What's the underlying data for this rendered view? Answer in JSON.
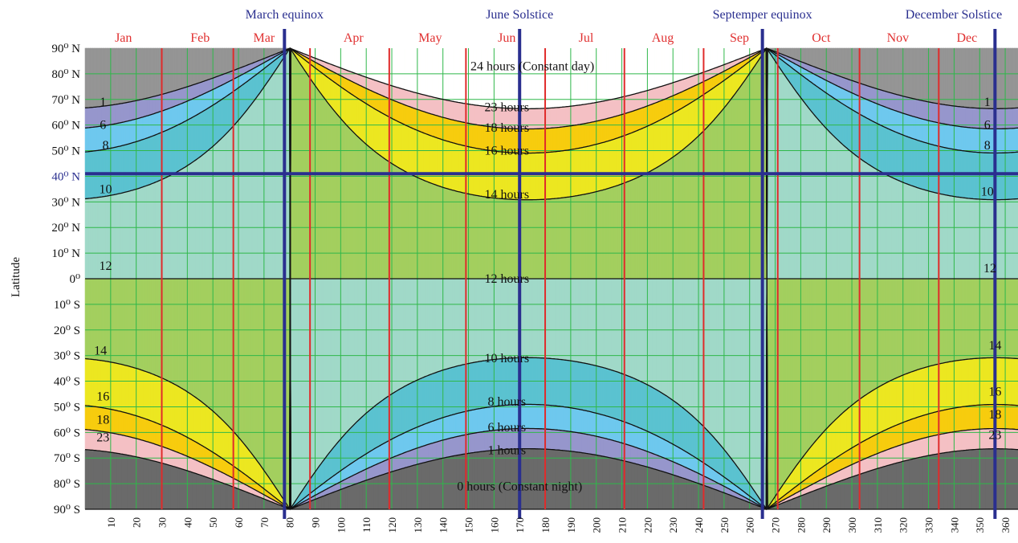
{
  "chart_data": {
    "type": "area",
    "title": "",
    "xlabel": "",
    "ylabel": "Latitude",
    "xlim": [
      0,
      365
    ],
    "ylim": [
      -90,
      90
    ],
    "x_ticks": [
      10,
      20,
      30,
      40,
      50,
      60,
      70,
      80,
      90,
      100,
      110,
      120,
      130,
      140,
      150,
      160,
      170,
      180,
      190,
      200,
      210,
      220,
      230,
      240,
      250,
      260,
      270,
      280,
      290,
      300,
      310,
      320,
      330,
      340,
      350,
      360
    ],
    "y_tick_labels": [
      {
        "lat": 90,
        "text": "90⁰ N"
      },
      {
        "lat": 80,
        "text": "80⁰ N"
      },
      {
        "lat": 70,
        "text": "70⁰ N"
      },
      {
        "lat": 60,
        "text": "60⁰ N"
      },
      {
        "lat": 50,
        "text": "50⁰ N"
      },
      {
        "lat": 40,
        "text": "40⁰ N",
        "highlight": true
      },
      {
        "lat": 30,
        "text": "30⁰ N"
      },
      {
        "lat": 20,
        "text": "20⁰ N"
      },
      {
        "lat": 10,
        "text": "10⁰ N"
      },
      {
        "lat": 0,
        "text": "0⁰"
      },
      {
        "lat": -10,
        "text": "10⁰ S"
      },
      {
        "lat": -20,
        "text": "20⁰ S"
      },
      {
        "lat": -30,
        "text": "30⁰ S"
      },
      {
        "lat": -40,
        "text": "40⁰ S"
      },
      {
        "lat": -50,
        "text": "50⁰ S"
      },
      {
        "lat": -60,
        "text": "60⁰ S"
      },
      {
        "lat": -70,
        "text": "70⁰ S"
      },
      {
        "lat": -80,
        "text": "80⁰ S"
      },
      {
        "lat": -90,
        "text": "90⁰ S"
      }
    ],
    "months": [
      {
        "label": "Jan",
        "mid": 15
      },
      {
        "label": "Feb",
        "mid": 45
      },
      {
        "label": "Mar",
        "mid": 70
      },
      {
        "label": "Apr",
        "mid": 105
      },
      {
        "label": "May",
        "mid": 135
      },
      {
        "label": "Jun",
        "mid": 165
      },
      {
        "label": "Jul",
        "mid": 196
      },
      {
        "label": "Aug",
        "mid": 226
      },
      {
        "label": "Sep",
        "mid": 256
      },
      {
        "label": "Oct",
        "mid": 288
      },
      {
        "label": "Nov",
        "mid": 318
      },
      {
        "label": "Dec",
        "mid": 345
      }
    ],
    "month_boundaries": [
      30,
      58,
      88,
      119,
      149,
      180,
      211,
      242,
      271,
      303,
      334
    ],
    "events": [
      {
        "label": "March equinox",
        "day": 78
      },
      {
        "label": "June Solstice",
        "day": 170
      },
      {
        "label": "Septemper equinox",
        "day": 265
      },
      {
        "label": "December Solstice",
        "day": 356
      }
    ],
    "highlight_latitude": 41,
    "bands": [
      {
        "hours": "24 hours (Constant day)",
        "color": "#ffffff"
      },
      {
        "hours": "23 hours",
        "color": "#f4c0c4"
      },
      {
        "hours": "18 hours",
        "color": "#f7cc0e"
      },
      {
        "hours": "16 hours",
        "color": "#ece721"
      },
      {
        "hours": "14 hours",
        "color": "#a3cf5f"
      },
      {
        "hours": "12 hours",
        "color": "#a0d9c8"
      },
      {
        "hours": "10 hours",
        "color": "#5bc2d0"
      },
      {
        "hours": "8 hours",
        "color": "#6ec8ee"
      },
      {
        "hours": "6 hours",
        "color": "#9696cc"
      },
      {
        "hours": "1 hours",
        "color": "#959595"
      },
      {
        "hours": "0 hours (Constant night)",
        "color": "#6a6a6a"
      }
    ],
    "contour_labels": [
      {
        "text": "24 hours (Constant day)",
        "day": 175,
        "lat": 83
      },
      {
        "text": "23 hours",
        "day": 165,
        "lat": 67
      },
      {
        "text": "18 hours",
        "day": 165,
        "lat": 59
      },
      {
        "text": "16 hours",
        "day": 165,
        "lat": 50
      },
      {
        "text": "14 hours",
        "day": 165,
        "lat": 33
      },
      {
        "text": "12 hours",
        "day": 165,
        "lat": 0
      },
      {
        "text": "10 hours",
        "day": 165,
        "lat": -31
      },
      {
        "text": "8 hours",
        "day": 165,
        "lat": -48
      },
      {
        "text": "6 hours",
        "day": 165,
        "lat": -58
      },
      {
        "text": "1 hours",
        "day": 165,
        "lat": -67
      },
      {
        "text": "0 hours (Constant night)",
        "day": 170,
        "lat": -81
      },
      {
        "text": "1",
        "day": 7,
        "lat": 69
      },
      {
        "text": "6",
        "day": 7,
        "lat": 60
      },
      {
        "text": "8",
        "day": 8,
        "lat": 52
      },
      {
        "text": "10",
        "day": 8,
        "lat": 35
      },
      {
        "text": "12",
        "day": 8,
        "lat": 5
      },
      {
        "text": "14",
        "day": 6,
        "lat": -28
      },
      {
        "text": "16",
        "day": 7,
        "lat": -46
      },
      {
        "text": "18",
        "day": 7,
        "lat": -55
      },
      {
        "text": "23",
        "day": 7,
        "lat": -62
      },
      {
        "text": "1",
        "day": 353,
        "lat": 69
      },
      {
        "text": "6",
        "day": 353,
        "lat": 60
      },
      {
        "text": "8",
        "day": 353,
        "lat": 52
      },
      {
        "text": "10",
        "day": 353,
        "lat": 34
      },
      {
        "text": "12",
        "day": 354,
        "lat": 4
      },
      {
        "text": "14",
        "day": 356,
        "lat": -26
      },
      {
        "text": "16",
        "day": 356,
        "lat": -44
      },
      {
        "text": "18",
        "day": 356,
        "lat": -53
      },
      {
        "text": "23",
        "day": 356,
        "lat": -61
      }
    ]
  }
}
